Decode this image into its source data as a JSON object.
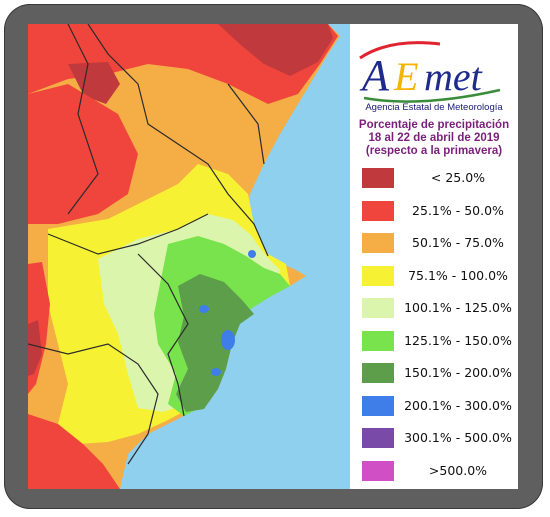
{
  "logo": {
    "text": "AEmet",
    "agency": "Agencia Estatal de Meteorología"
  },
  "title": {
    "line1": "Porcentaje de precipitación",
    "line2": "18 al 22 de abril de 2019",
    "line3": "(respecto a la primavera)"
  },
  "legend": [
    {
      "label": "< 25.0%",
      "color": "#c0393d"
    },
    {
      "label": "25.1% - 50.0%",
      "color": "#f0453c"
    },
    {
      "label": "50.1% - 75.0%",
      "color": "#f4ae45"
    },
    {
      "label": "75.1% - 100.0%",
      "color": "#f6f233"
    },
    {
      "label": "100.1% - 125.0%",
      "color": "#dcf5ac"
    },
    {
      "label": "125.1% - 150.0%",
      "color": "#78e34c"
    },
    {
      "label": "150.1% - 200.0%",
      "color": "#5d9e4a"
    },
    {
      "label": "200.1% - 300.0%",
      "color": "#3f7ee8"
    },
    {
      "label": "300.1% - 500.0%",
      "color": "#7a4aa8"
    },
    {
      "label": ">500.0%",
      "color": "#d14fc5"
    }
  ],
  "colors": {
    "sea": "#8fd0ef",
    "frame": "#5f5f5f"
  }
}
